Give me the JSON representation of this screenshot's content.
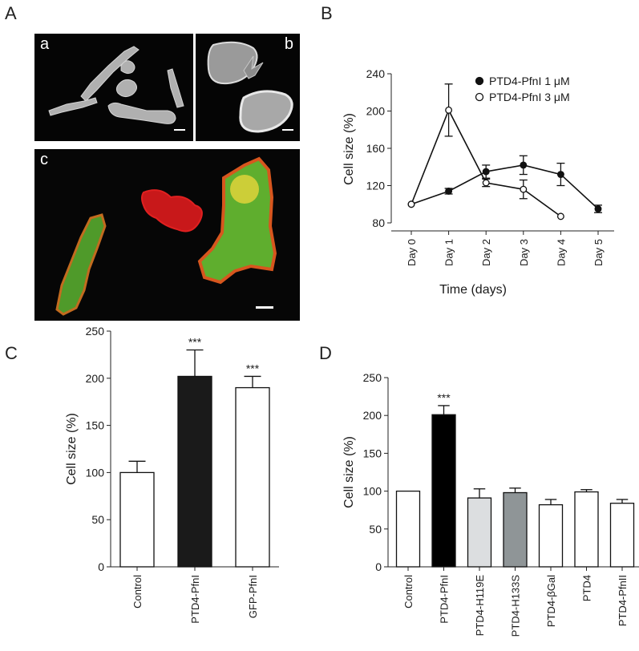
{
  "panels": {
    "A": {
      "label": "A",
      "sub": [
        "a",
        "b",
        "c"
      ]
    },
    "B": {
      "label": "B"
    },
    "C": {
      "label": "C"
    },
    "D": {
      "label": "D"
    }
  },
  "chart_data": [
    {
      "id": "B",
      "type": "line",
      "xlabel": "Time (days)",
      "ylabel": "Cell size (%)",
      "categories": [
        "Day 0",
        "Day 1",
        "Day 2",
        "Day 3",
        "Day 4",
        "Day 5"
      ],
      "ylim": [
        80,
        240
      ],
      "yticks": [
        80,
        120,
        160,
        200,
        240
      ],
      "legend_position": "top-right",
      "series": [
        {
          "name": "PTD4-PfnI 1 μM",
          "marker": "filled-circle",
          "values": [
            100,
            114,
            135,
            142,
            132,
            95
          ],
          "errors": [
            0,
            3,
            7,
            10,
            12,
            4
          ]
        },
        {
          "name": "PTD4-PfnI 3 μM",
          "marker": "open-circle",
          "values": [
            100,
            201,
            123,
            116,
            87,
            null
          ],
          "errors": [
            0,
            28,
            4,
            10,
            0,
            null
          ]
        }
      ]
    },
    {
      "id": "C",
      "type": "bar",
      "ylabel": "Cell size (%)",
      "categories": [
        "Control",
        "PTD4-PfnI",
        "GFP-PfnI"
      ],
      "values": [
        100,
        202,
        190
      ],
      "errors": [
        12,
        28,
        12
      ],
      "colors": [
        "#ffffff",
        "#1a1a1a",
        "#ffffff"
      ],
      "significance": [
        "",
        "***",
        "***"
      ],
      "ylim": [
        0,
        250
      ],
      "yticks": [
        0,
        50,
        100,
        150,
        200,
        250
      ]
    },
    {
      "id": "D",
      "type": "bar",
      "ylabel": "Cell size (%)",
      "categories": [
        "Control",
        "PTD4-PfnI",
        "PTD4-H119E",
        "PTD4-H133S",
        "PTD4-βGal",
        "PTD4",
        "PTD4-PfnII"
      ],
      "values": [
        100,
        201,
        91,
        98,
        82,
        99,
        84
      ],
      "errors": [
        0,
        12,
        12,
        6,
        7,
        3,
        5
      ],
      "colors": [
        "#ffffff",
        "#000000",
        "#dcdee0",
        "#8f9597",
        "#ffffff",
        "#ffffff",
        "#ffffff"
      ],
      "significance": [
        "",
        "***",
        "",
        "",
        "",
        "",
        ""
      ],
      "ylim": [
        0,
        250
      ],
      "yticks": [
        0,
        50,
        100,
        150,
        200,
        250
      ]
    }
  ]
}
